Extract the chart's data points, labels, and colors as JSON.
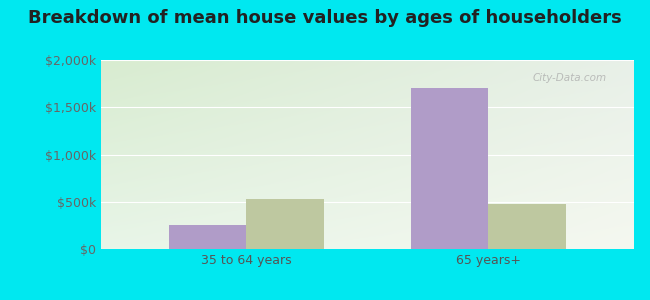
{
  "title": "Breakdown of mean house values by ages of householders",
  "categories": [
    "35 to 64 years",
    "65 years+"
  ],
  "series": {
    "Marion": [
      250000,
      1700000
    ],
    "Oregon": [
      525000,
      475000
    ]
  },
  "colors": {
    "Marion": "#b09cc8",
    "Oregon": "#bec8a0"
  },
  "ylim": [
    0,
    2000000
  ],
  "yticks": [
    0,
    500000,
    1000000,
    1500000,
    2000000
  ],
  "ytick_labels": [
    "$0",
    "$500k",
    "$1,000k",
    "$1,500k",
    "$2,000k"
  ],
  "background_outer": "#00e8f0",
  "background_plot_tl": "#d8ecd0",
  "background_plot_tr": "#e8f0e0",
  "background_plot_bl": "#e8f8e8",
  "background_plot_br": "#f5f8f0",
  "title_fontsize": 13,
  "tick_fontsize": 9,
  "legend_fontsize": 10,
  "bar_width": 0.32,
  "watermark": "City-Data.com"
}
